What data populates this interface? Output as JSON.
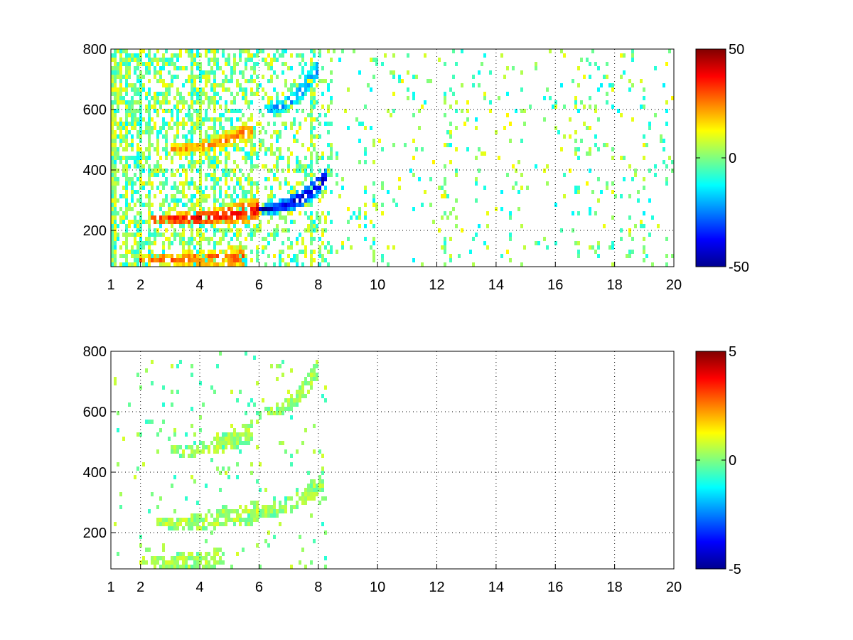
{
  "chart_data": [
    {
      "type": "heatmap",
      "title": "",
      "xlabel": "",
      "ylabel": "",
      "xlim": [
        1,
        20
      ],
      "ylim": [
        80,
        800
      ],
      "xticks": [
        1,
        2,
        4,
        6,
        8,
        10,
        12,
        14,
        16,
        18,
        20
      ],
      "yticks": [
        200,
        400,
        600,
        800
      ],
      "grid": true,
      "colormap": "jet",
      "colorbar": {
        "range": [
          -50,
          50
        ],
        "ticks": [
          50,
          0,
          -50
        ]
      },
      "features": [
        {
          "label": "band",
          "x_range": [
            2.3,
            6.0
          ],
          "y_start": 235,
          "y_end": 270,
          "value": 40
        },
        {
          "label": "band",
          "x_range": [
            6.0,
            8.3
          ],
          "y_start": 270,
          "y_end": 380,
          "value": -45
        },
        {
          "label": "band",
          "x_range": [
            3.0,
            5.8
          ],
          "y_start": 470,
          "y_end": 540,
          "value": 25
        },
        {
          "label": "band",
          "x_range": [
            6.2,
            8.0
          ],
          "y_start": 600,
          "y_end": 740,
          "value": -25
        },
        {
          "label": "band",
          "x_range": [
            2.0,
            5.5
          ],
          "y_start": 105,
          "y_end": 110,
          "value": 30
        }
      ]
    },
    {
      "type": "heatmap",
      "title": "",
      "xlabel": "",
      "ylabel": "",
      "xlim": [
        1,
        20
      ],
      "ylim": [
        80,
        800
      ],
      "xticks": [
        1,
        2,
        4,
        6,
        8,
        10,
        12,
        14,
        16,
        18,
        20
      ],
      "yticks": [
        200,
        400,
        600,
        800
      ],
      "grid": true,
      "colormap": "jet",
      "colorbar": {
        "range": [
          -5,
          5
        ],
        "ticks": [
          5,
          0,
          -5
        ]
      },
      "features": [
        {
          "label": "band",
          "x_range": [
            2.5,
            6.0
          ],
          "y_start": 230,
          "y_end": 270,
          "value": 0.5
        },
        {
          "label": "band",
          "x_range": [
            6.0,
            8.2
          ],
          "y_start": 270,
          "y_end": 380,
          "value": 0.3
        },
        {
          "label": "band",
          "x_range": [
            3.0,
            5.8
          ],
          "y_start": 470,
          "y_end": 540,
          "value": 0.4
        },
        {
          "label": "band",
          "x_range": [
            6.2,
            8.0
          ],
          "y_start": 600,
          "y_end": 740,
          "value": 0.3
        },
        {
          "label": "band",
          "x_range": [
            2.0,
            4.8
          ],
          "y_start": 105,
          "y_end": 110,
          "value": 0.4
        }
      ]
    }
  ]
}
